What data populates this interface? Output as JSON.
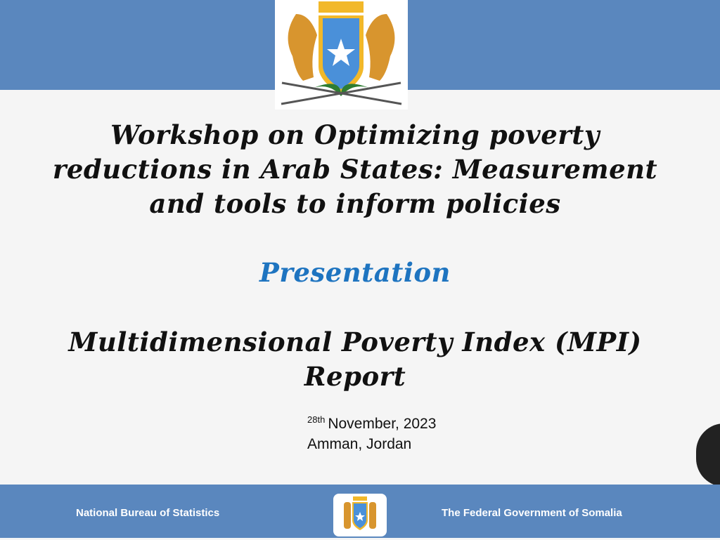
{
  "slide": {
    "title_lines": [
      "Workshop on Optimizing poverty",
      "reductions in Arab States: Measurement",
      "and tools to inform policies"
    ],
    "subtitle": "Presentation",
    "report_lines": [
      "Multidimensional Poverty Index (MPI)",
      "Report"
    ],
    "date_sup": "28th",
    "date": "November, 2023",
    "location": "Amman, Jordan"
  },
  "footer": {
    "left": "National Bureau of Statistics",
    "right": "The Federal Government of Somalia"
  },
  "colors": {
    "band": "#5a87be",
    "accent": "#1e74c0",
    "shield": "#4a90d9",
    "gold": "#f2b829"
  }
}
